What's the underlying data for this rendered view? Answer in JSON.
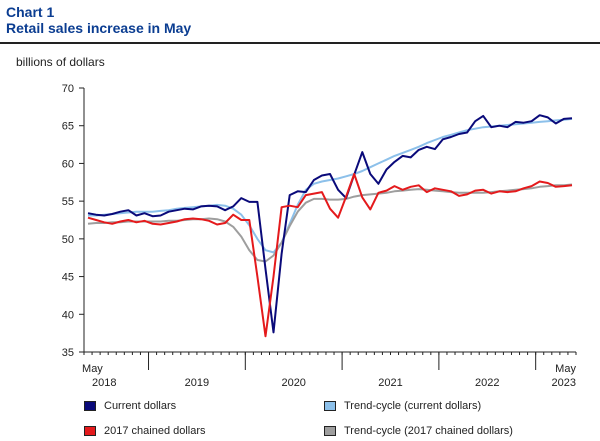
{
  "header": {
    "title": "Chart 1",
    "subtitle": "Retail sales increase in May"
  },
  "chart_data": {
    "type": "line",
    "ylabel": "billions of dollars",
    "ylim": [
      35,
      70
    ],
    "y_ticks": [
      35,
      40,
      45,
      50,
      55,
      60,
      65,
      70
    ],
    "x": [
      "2018-05",
      "2018-06",
      "2018-07",
      "2018-08",
      "2018-09",
      "2018-10",
      "2018-11",
      "2018-12",
      "2019-01",
      "2019-02",
      "2019-03",
      "2019-04",
      "2019-05",
      "2019-06",
      "2019-07",
      "2019-08",
      "2019-09",
      "2019-10",
      "2019-11",
      "2019-12",
      "2020-01",
      "2020-02",
      "2020-03",
      "2020-04",
      "2020-05",
      "2020-06",
      "2020-07",
      "2020-08",
      "2020-09",
      "2020-10",
      "2020-11",
      "2020-12",
      "2021-01",
      "2021-02",
      "2021-03",
      "2021-04",
      "2021-05",
      "2021-06",
      "2021-07",
      "2021-08",
      "2021-09",
      "2021-10",
      "2021-11",
      "2021-12",
      "2022-01",
      "2022-02",
      "2022-03",
      "2022-04",
      "2022-05",
      "2022-06",
      "2022-07",
      "2022-08",
      "2022-09",
      "2022-10",
      "2022-11",
      "2022-12",
      "2023-01",
      "2023-02",
      "2023-03",
      "2023-04",
      "2023-05"
    ],
    "x_axis": {
      "start_labels": [
        "May",
        "2018"
      ],
      "end_labels": [
        "May",
        "2023"
      ],
      "year_labels": [
        "2019",
        "2020",
        "2021",
        "2022"
      ]
    },
    "series": [
      {
        "name": "Current dollars",
        "color": "#0a0a7a",
        "values": [
          53.4,
          53.2,
          53.1,
          53.3,
          53.6,
          53.8,
          53.1,
          53.4,
          53.0,
          53.1,
          53.6,
          53.8,
          54.0,
          53.9,
          54.3,
          54.4,
          54.3,
          53.8,
          54.3,
          55.4,
          54.9,
          54.9,
          46.0,
          37.6,
          48.0,
          55.8,
          56.3,
          56.2,
          57.8,
          58.4,
          58.6,
          56.5,
          55.4,
          58.5,
          61.5,
          58.6,
          57.3,
          59.2,
          60.2,
          61.0,
          60.8,
          61.8,
          62.2,
          61.9,
          63.2,
          63.5,
          63.9,
          64.1,
          65.6,
          66.3,
          64.8,
          65.0,
          64.8,
          65.5,
          65.4,
          65.6,
          66.4,
          66.1,
          65.3,
          65.9,
          66.0
        ]
      },
      {
        "name": "Trend-cycle (current dollars)",
        "color": "#8cc0ea",
        "values": [
          53.1,
          53.1,
          53.2,
          53.3,
          53.4,
          53.5,
          53.6,
          53.6,
          53.6,
          53.7,
          53.8,
          54.0,
          54.1,
          54.2,
          54.3,
          54.4,
          54.5,
          54.4,
          54.0,
          53.2,
          51.8,
          50.0,
          48.5,
          48.2,
          49.5,
          52.0,
          54.5,
          56.5,
          57.3,
          57.6,
          57.8,
          58.0,
          58.3,
          58.6,
          59.0,
          59.5,
          60.0,
          60.5,
          61.0,
          61.4,
          61.8,
          62.2,
          62.7,
          63.1,
          63.5,
          63.8,
          64.1,
          64.4,
          64.6,
          64.8,
          64.9,
          65.0,
          65.1,
          65.2,
          65.3,
          65.4,
          65.5,
          65.6,
          65.7,
          65.8,
          65.9
        ]
      },
      {
        "name": "2017 chained dollars",
        "color": "#e41a1c",
        "values": [
          52.8,
          52.5,
          52.2,
          52.0,
          52.3,
          52.5,
          52.2,
          52.4,
          52.0,
          51.9,
          52.1,
          52.3,
          52.6,
          52.7,
          52.6,
          52.4,
          51.9,
          52.1,
          53.2,
          52.5,
          52.5,
          45.0,
          37.1,
          45.0,
          54.2,
          54.4,
          54.2,
          55.8,
          56.0,
          56.2,
          54.0,
          52.8,
          55.6,
          58.6,
          55.5,
          53.9,
          56.1,
          56.4,
          57.0,
          56.5,
          56.9,
          57.1,
          56.2,
          56.7,
          56.5,
          56.3,
          55.7,
          55.9,
          56.4,
          56.5,
          56.0,
          56.3,
          56.2,
          56.3,
          56.7,
          57.0,
          57.6,
          57.4,
          56.9,
          57.0,
          57.1
        ]
      },
      {
        "name": "Trend-cycle (2017 chained dollars)",
        "color": "#9e9e9e",
        "values": [
          52.0,
          52.1,
          52.1,
          52.2,
          52.2,
          52.3,
          52.3,
          52.3,
          52.3,
          52.3,
          52.4,
          52.4,
          52.5,
          52.6,
          52.6,
          52.7,
          52.6,
          52.3,
          51.6,
          50.3,
          48.5,
          47.2,
          47.0,
          47.8,
          49.5,
          51.7,
          53.6,
          54.8,
          55.3,
          55.3,
          55.2,
          55.2,
          55.3,
          55.6,
          55.8,
          55.9,
          56.0,
          56.1,
          56.3,
          56.4,
          56.5,
          56.6,
          56.5,
          56.4,
          56.3,
          56.2,
          56.1,
          56.1,
          56.1,
          56.1,
          56.2,
          56.3,
          56.4,
          56.5,
          56.6,
          56.7,
          56.9,
          57.0,
          57.1,
          57.1,
          57.2
        ]
      }
    ],
    "legend": {
      "placement": "bottom",
      "items": [
        {
          "label": "Current dollars",
          "color": "#0a0a7a"
        },
        {
          "label": "Trend-cycle (current dollars)",
          "color": "#8cc0ea"
        },
        {
          "label": "2017 chained dollars",
          "color": "#e41a1c"
        },
        {
          "label": "Trend-cycle (2017 chained dollars)",
          "color": "#9e9e9e"
        }
      ]
    },
    "grid": false
  }
}
